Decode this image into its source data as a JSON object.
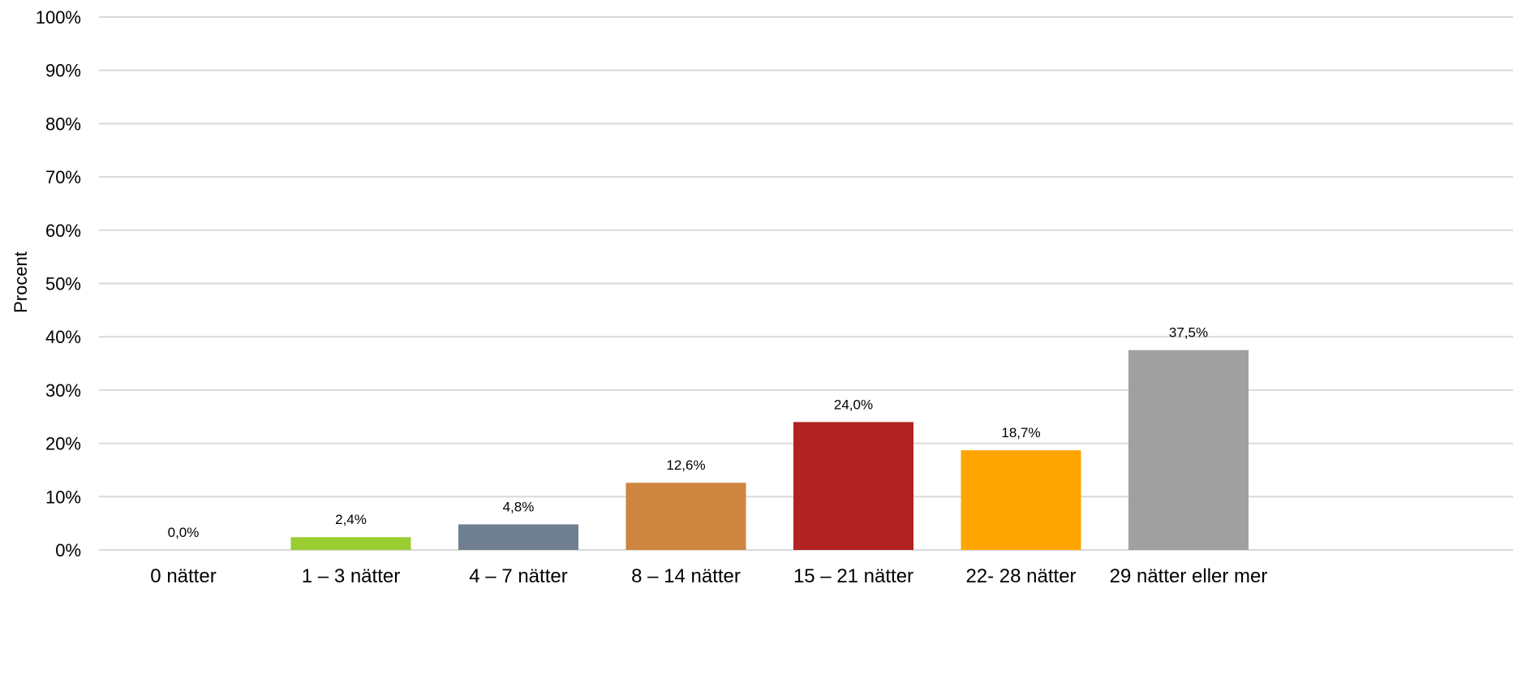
{
  "chart_data": {
    "type": "bar",
    "title": "",
    "xlabel": "",
    "ylabel": "Procent",
    "ylim": [
      0,
      100
    ],
    "yticks": [
      0,
      10,
      20,
      30,
      40,
      50,
      60,
      70,
      80,
      90,
      100
    ],
    "ytick_labels": [
      "0%",
      "10%",
      "20%",
      "30%",
      "40%",
      "50%",
      "60%",
      "70%",
      "80%",
      "90%",
      "100%"
    ],
    "grid": true,
    "legend": "none",
    "categories": [
      "0 nätter",
      "1 – 3 nätter",
      "4 – 7 nätter",
      "8 – 14 nätter",
      "15 – 21 nätter",
      "22- 28 nätter",
      "29 nätter eller mer"
    ],
    "values": [
      0.0,
      2.4,
      4.8,
      12.6,
      24.0,
      18.7,
      37.5
    ],
    "data_labels": [
      "0,0%",
      "2,4%",
      "4,8%",
      "12,6%",
      "24,0%",
      "18,7%",
      "37,5%"
    ],
    "colors": [
      "#c0c0c0",
      "#9acd32",
      "#708090",
      "#cd853f",
      "#b22222",
      "#ffa500",
      "#a0a0a0"
    ],
    "grid_color": "#d9d9d9"
  }
}
